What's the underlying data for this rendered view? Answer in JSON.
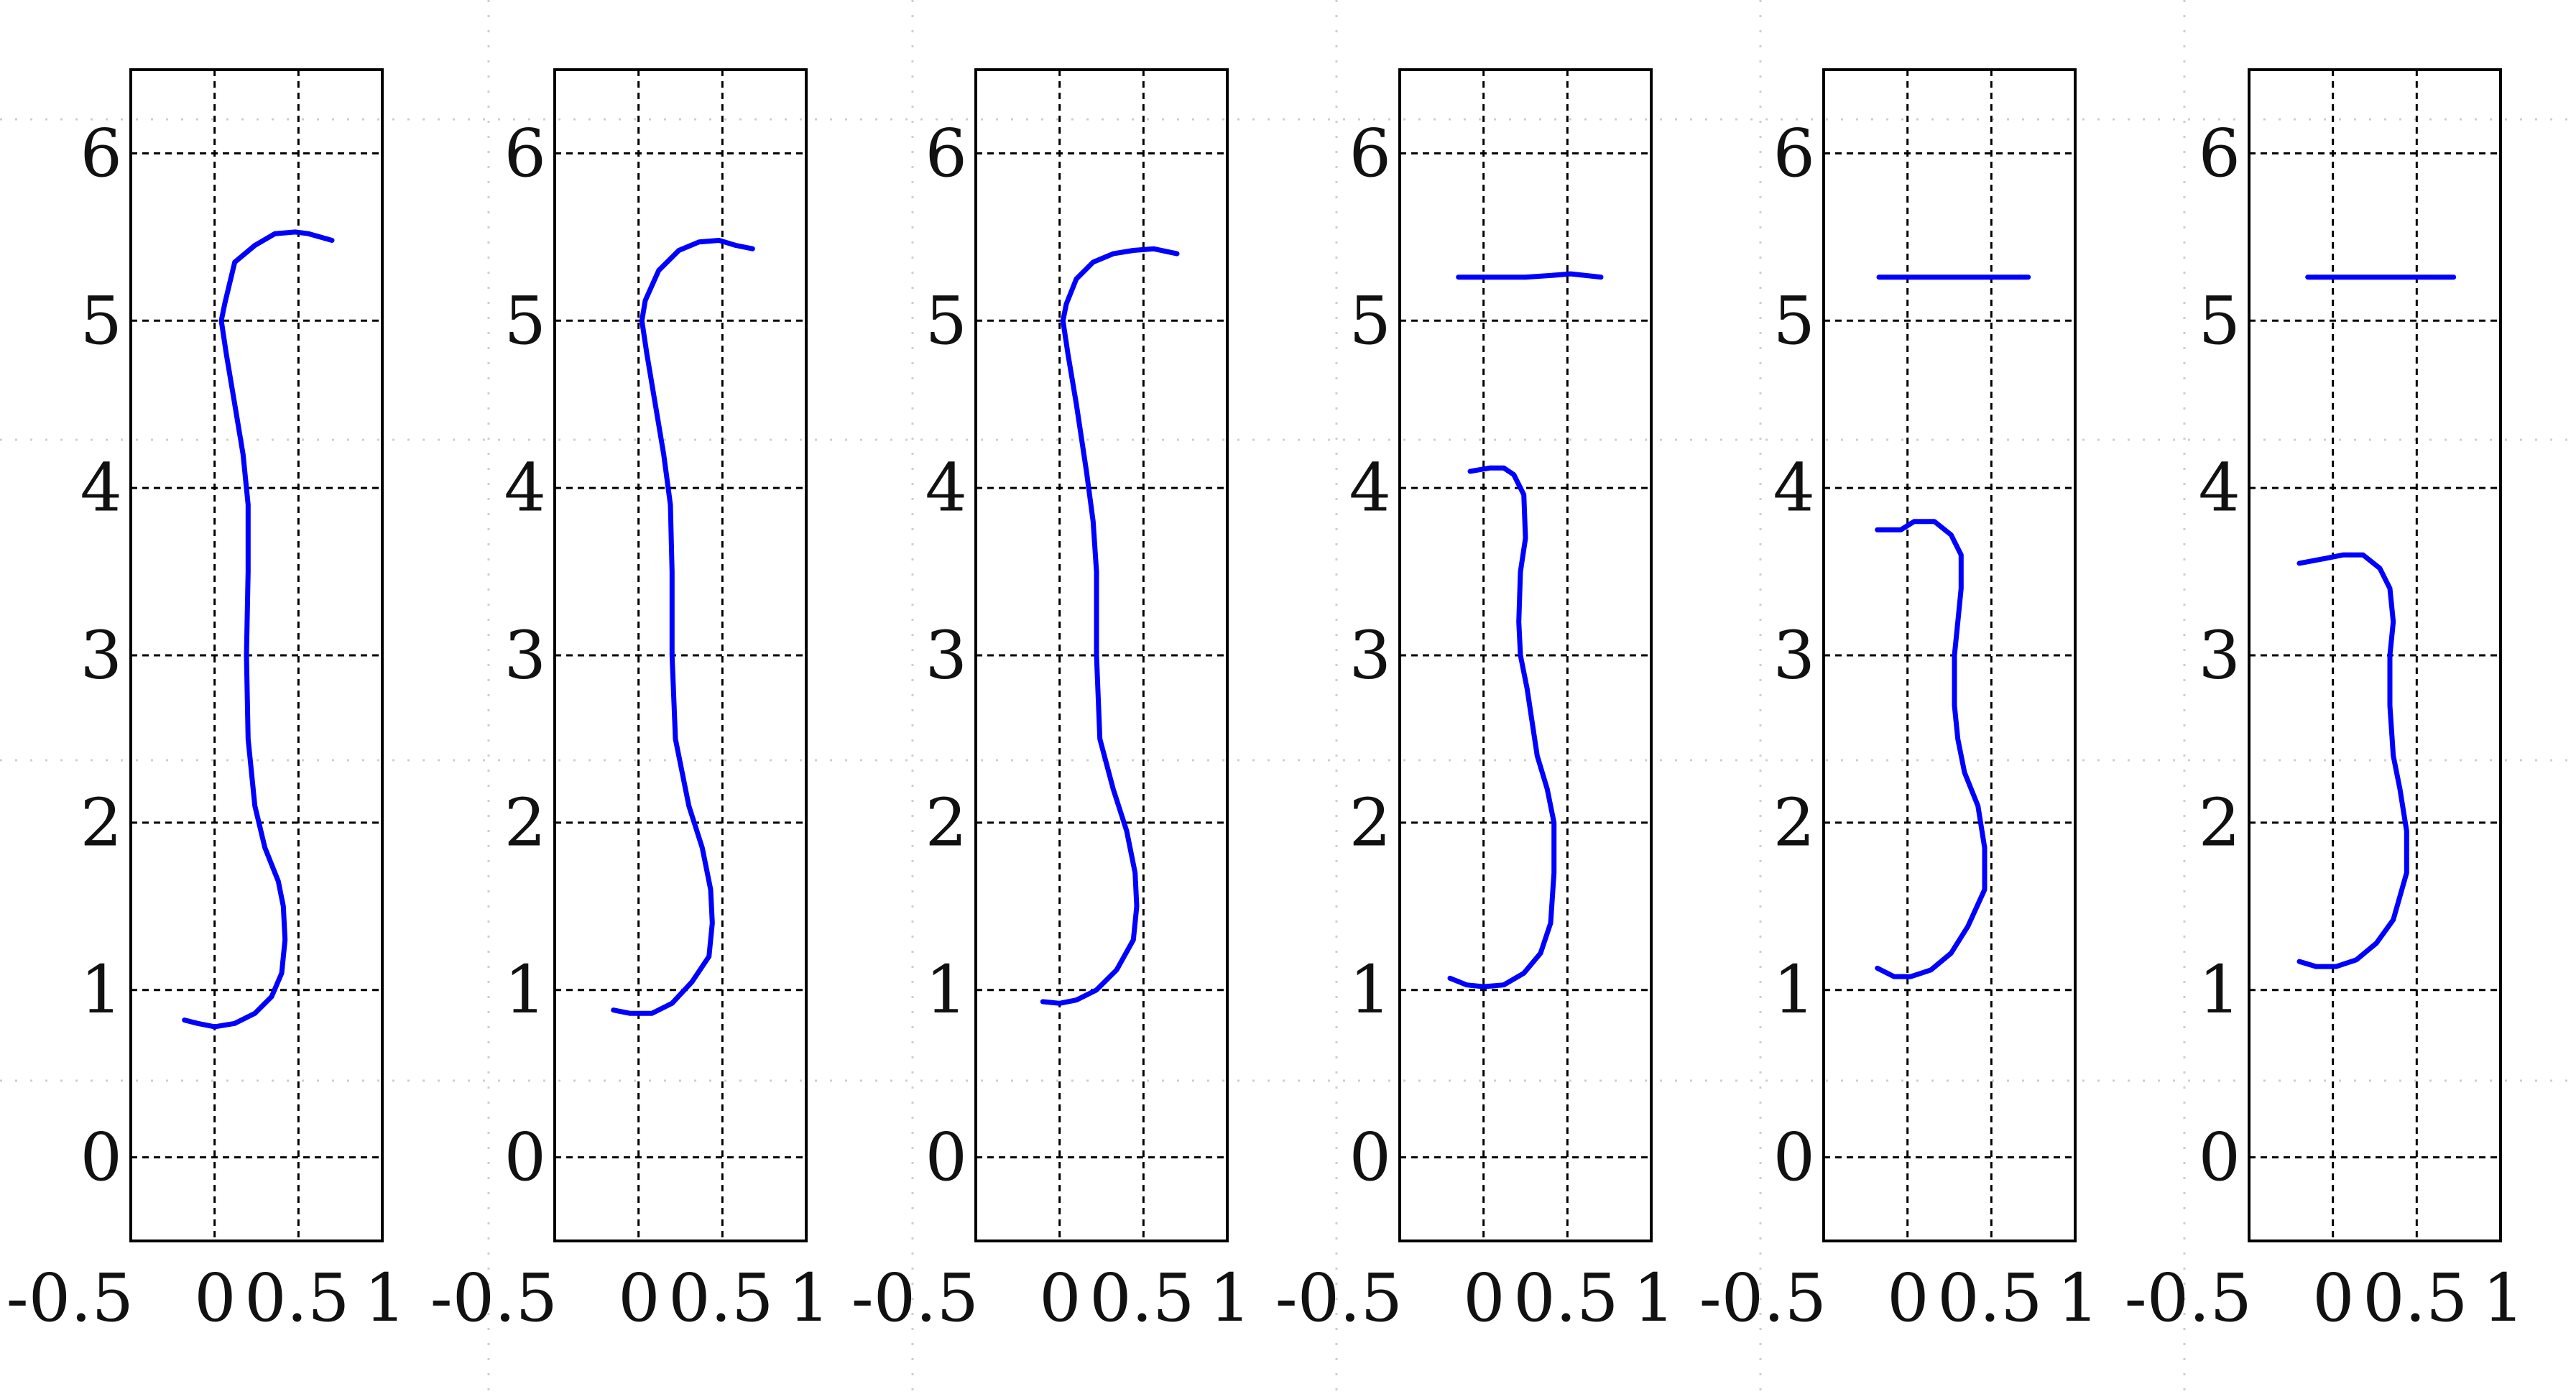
{
  "chart_data": [
    {
      "type": "line",
      "xlim": [
        -0.5,
        1
      ],
      "ylim": [
        -0.5,
        6.5
      ],
      "xticks": [
        -0.5,
        0,
        0.5,
        1
      ],
      "yticks": [
        0,
        1,
        2,
        3,
        4,
        5,
        6
      ],
      "xtick_labels": [
        "-0.5",
        "0",
        "0.5",
        "1"
      ],
      "ytick_labels": [
        "0",
        "1",
        "2",
        "3",
        "4",
        "5",
        "6"
      ],
      "grid": true,
      "series": [
        {
          "color": "#0000ff",
          "points": [
            [
              -0.18,
              0.82
            ],
            [
              -0.1,
              0.8
            ],
            [
              0.0,
              0.78
            ],
            [
              0.12,
              0.8
            ],
            [
              0.24,
              0.86
            ],
            [
              0.34,
              0.96
            ],
            [
              0.4,
              1.1
            ],
            [
              0.42,
              1.3
            ],
            [
              0.41,
              1.5
            ],
            [
              0.38,
              1.65
            ],
            [
              0.3,
              1.85
            ],
            [
              0.24,
              2.1
            ],
            [
              0.2,
              2.5
            ],
            [
              0.19,
              3.0
            ],
            [
              0.2,
              3.5
            ],
            [
              0.2,
              3.9
            ],
            [
              0.17,
              4.2
            ],
            [
              0.12,
              4.5
            ],
            [
              0.07,
              4.8
            ],
            [
              0.04,
              5.0
            ],
            [
              0.06,
              5.1
            ],
            [
              0.12,
              5.35
            ],
            [
              0.24,
              5.45
            ],
            [
              0.36,
              5.52
            ],
            [
              0.48,
              5.53
            ],
            [
              0.56,
              5.52
            ],
            [
              0.7,
              5.48
            ]
          ]
        }
      ]
    },
    {
      "type": "line",
      "xlim": [
        -0.5,
        1
      ],
      "ylim": [
        -0.5,
        6.5
      ],
      "xticks": [
        -0.5,
        0,
        0.5,
        1
      ],
      "yticks": [
        0,
        1,
        2,
        3,
        4,
        5,
        6
      ],
      "xtick_labels": [
        "-0.5",
        "0",
        "0.5",
        "1"
      ],
      "ytick_labels": [
        "0",
        "1",
        "2",
        "3",
        "4",
        "5",
        "6"
      ],
      "grid": true,
      "series": [
        {
          "color": "#0000ff",
          "points": [
            [
              -0.15,
              0.88
            ],
            [
              -0.05,
              0.86
            ],
            [
              0.08,
              0.86
            ],
            [
              0.2,
              0.92
            ],
            [
              0.32,
              1.05
            ],
            [
              0.42,
              1.2
            ],
            [
              0.44,
              1.4
            ],
            [
              0.43,
              1.6
            ],
            [
              0.38,
              1.85
            ],
            [
              0.3,
              2.1
            ],
            [
              0.22,
              2.5
            ],
            [
              0.2,
              3.0
            ],
            [
              0.2,
              3.5
            ],
            [
              0.19,
              3.9
            ],
            [
              0.15,
              4.2
            ],
            [
              0.1,
              4.5
            ],
            [
              0.05,
              4.8
            ],
            [
              0.02,
              5.0
            ],
            [
              0.04,
              5.12
            ],
            [
              0.12,
              5.3
            ],
            [
              0.24,
              5.42
            ],
            [
              0.36,
              5.47
            ],
            [
              0.48,
              5.48
            ],
            [
              0.58,
              5.45
            ],
            [
              0.68,
              5.43
            ]
          ]
        }
      ]
    },
    {
      "type": "line",
      "xlim": [
        -0.5,
        1
      ],
      "ylim": [
        -0.5,
        6.5
      ],
      "xticks": [
        -0.5,
        0,
        0.5,
        1
      ],
      "yticks": [
        0,
        1,
        2,
        3,
        4,
        5,
        6
      ],
      "xtick_labels": [
        "-0.5",
        "0",
        "0.5",
        "1"
      ],
      "ytick_labels": [
        "0",
        "1",
        "2",
        "3",
        "4",
        "5",
        "6"
      ],
      "grid": true,
      "series": [
        {
          "color": "#0000ff",
          "points": [
            [
              -0.1,
              0.93
            ],
            [
              0.0,
              0.92
            ],
            [
              0.1,
              0.94
            ],
            [
              0.22,
              1.0
            ],
            [
              0.34,
              1.12
            ],
            [
              0.44,
              1.3
            ],
            [
              0.46,
              1.5
            ],
            [
              0.45,
              1.7
            ],
            [
              0.4,
              1.95
            ],
            [
              0.32,
              2.2
            ],
            [
              0.24,
              2.5
            ],
            [
              0.22,
              3.0
            ],
            [
              0.22,
              3.5
            ],
            [
              0.2,
              3.8
            ],
            [
              0.16,
              4.1
            ],
            [
              0.1,
              4.5
            ],
            [
              0.05,
              4.8
            ],
            [
              0.02,
              5.0
            ],
            [
              0.04,
              5.1
            ],
            [
              0.1,
              5.25
            ],
            [
              0.2,
              5.35
            ],
            [
              0.32,
              5.4
            ],
            [
              0.44,
              5.42
            ],
            [
              0.56,
              5.43
            ],
            [
              0.7,
              5.4
            ]
          ]
        }
      ]
    },
    {
      "type": "line",
      "xlim": [
        -0.5,
        1
      ],
      "ylim": [
        -0.5,
        6.5
      ],
      "xticks": [
        -0.5,
        0,
        0.5,
        1
      ],
      "yticks": [
        0,
        1,
        2,
        3,
        4,
        5,
        6
      ],
      "xtick_labels": [
        "-0.5",
        "0",
        "0.5",
        "1"
      ],
      "ytick_labels": [
        "0",
        "1",
        "2",
        "3",
        "4",
        "5",
        "6"
      ],
      "grid": true,
      "series": [
        {
          "color": "#0000ff",
          "points": [
            [
              -0.2,
              1.07
            ],
            [
              -0.1,
              1.03
            ],
            [
              0.0,
              1.02
            ],
            [
              0.12,
              1.03
            ],
            [
              0.24,
              1.1
            ],
            [
              0.34,
              1.22
            ],
            [
              0.4,
              1.4
            ],
            [
              0.42,
              1.7
            ],
            [
              0.42,
              2.0
            ],
            [
              0.38,
              2.2
            ],
            [
              0.32,
              2.4
            ],
            [
              0.26,
              2.8
            ],
            [
              0.22,
              3.0
            ],
            [
              0.21,
              3.2
            ],
            [
              0.22,
              3.5
            ],
            [
              0.25,
              3.7
            ],
            [
              0.24,
              3.96
            ],
            [
              0.18,
              4.08
            ],
            [
              0.12,
              4.12
            ],
            [
              0.04,
              4.12
            ],
            [
              -0.08,
              4.1
            ]
          ]
        },
        {
          "color": "#0000ff",
          "points": [
            [
              -0.15,
              5.26
            ],
            [
              0.05,
              5.26
            ],
            [
              0.25,
              5.26
            ],
            [
              0.4,
              5.27
            ],
            [
              0.52,
              5.28
            ],
            [
              0.7,
              5.26
            ]
          ]
        }
      ]
    },
    {
      "type": "line",
      "xlim": [
        -0.5,
        1
      ],
      "ylim": [
        -0.5,
        6.5
      ],
      "xticks": [
        -0.5,
        0,
        0.5,
        1
      ],
      "yticks": [
        0,
        1,
        2,
        3,
        4,
        5,
        6
      ],
      "xtick_labels": [
        "-0.5",
        "0",
        "0.5",
        "1"
      ],
      "ytick_labels": [
        "0",
        "1",
        "2",
        "3",
        "4",
        "5",
        "6"
      ],
      "grid": true,
      "series": [
        {
          "color": "#0000ff",
          "points": [
            [
              -0.18,
              1.13
            ],
            [
              -0.08,
              1.08
            ],
            [
              0.02,
              1.08
            ],
            [
              0.14,
              1.12
            ],
            [
              0.26,
              1.22
            ],
            [
              0.36,
              1.38
            ],
            [
              0.46,
              1.6
            ],
            [
              0.46,
              1.85
            ],
            [
              0.42,
              2.1
            ],
            [
              0.34,
              2.3
            ],
            [
              0.3,
              2.5
            ],
            [
              0.28,
              2.7
            ],
            [
              0.28,
              3.0
            ],
            [
              0.3,
              3.2
            ],
            [
              0.32,
              3.4
            ],
            [
              0.32,
              3.6
            ],
            [
              0.26,
              3.72
            ],
            [
              0.16,
              3.8
            ],
            [
              0.04,
              3.8
            ],
            [
              -0.04,
              3.75
            ],
            [
              -0.18,
              3.75
            ]
          ]
        },
        {
          "color": "#0000ff",
          "points": [
            [
              -0.17,
              5.26
            ],
            [
              0.15,
              5.26
            ],
            [
              0.45,
              5.26
            ],
            [
              0.72,
              5.26
            ]
          ]
        }
      ]
    },
    {
      "type": "line",
      "xlim": [
        -0.5,
        1
      ],
      "ylim": [
        -0.5,
        6.5
      ],
      "xticks": [
        -0.5,
        0,
        0.5,
        1
      ],
      "yticks": [
        0,
        1,
        2,
        3,
        4,
        5,
        6
      ],
      "xtick_labels": [
        "-0.5",
        "0",
        "0.5",
        "1"
      ],
      "ytick_labels": [
        "0",
        "1",
        "2",
        "3",
        "4",
        "5",
        "6"
      ],
      "grid": true,
      "series": [
        {
          "color": "#0000ff",
          "points": [
            [
              -0.2,
              1.17
            ],
            [
              -0.1,
              1.14
            ],
            [
              0.02,
              1.14
            ],
            [
              0.14,
              1.18
            ],
            [
              0.26,
              1.28
            ],
            [
              0.36,
              1.42
            ],
            [
              0.44,
              1.7
            ],
            [
              0.44,
              1.95
            ],
            [
              0.4,
              2.2
            ],
            [
              0.36,
              2.4
            ],
            [
              0.34,
              2.7
            ],
            [
              0.34,
              3.0
            ],
            [
              0.36,
              3.2
            ],
            [
              0.34,
              3.4
            ],
            [
              0.28,
              3.52
            ],
            [
              0.18,
              3.6
            ],
            [
              0.06,
              3.6
            ],
            [
              -0.04,
              3.58
            ],
            [
              -0.2,
              3.55
            ]
          ]
        },
        {
          "color": "#0000ff",
          "points": [
            [
              -0.15,
              5.26
            ],
            [
              0.15,
              5.26
            ],
            [
              0.45,
              5.26
            ],
            [
              0.72,
              5.26
            ]
          ]
        }
      ]
    }
  ]
}
